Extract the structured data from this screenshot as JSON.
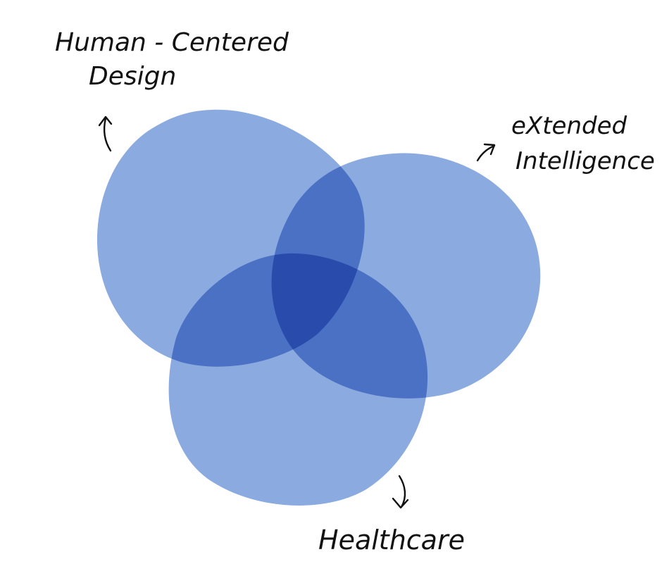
{
  "diagram": {
    "circles": [
      {
        "id": "human-centered-design",
        "label_lines": [
          "Human - Centered",
          "Design"
        ],
        "color": "#8aaae0"
      },
      {
        "id": "extended-intelligence",
        "label_lines": [
          "eXtended",
          "Intelligence"
        ],
        "color": "#8aaae0"
      },
      {
        "id": "healthcare",
        "label_lines": [
          "Healthcare"
        ],
        "color": "#8aaae0"
      }
    ],
    "overlap_note": "none"
  }
}
